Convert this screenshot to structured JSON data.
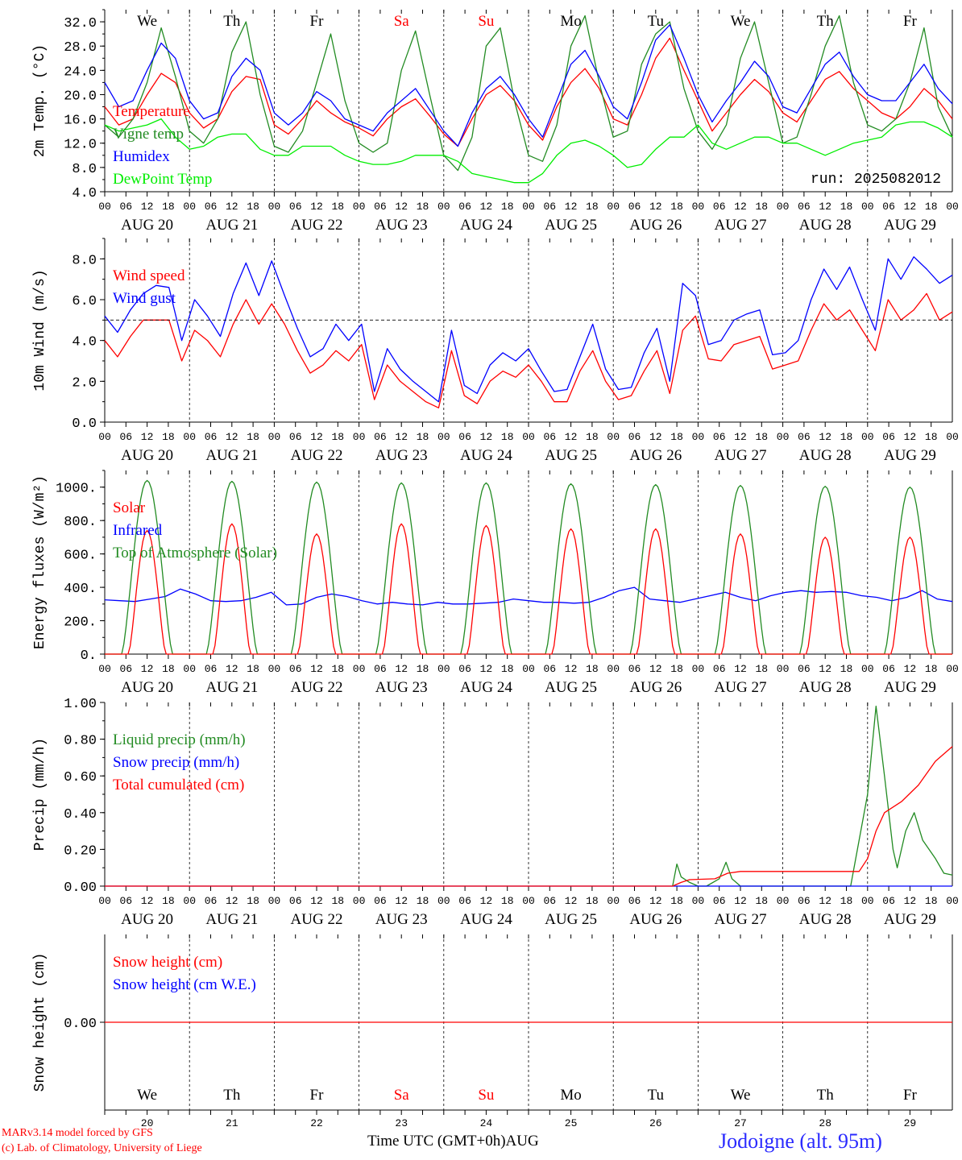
{
  "chart_data": [
    {
      "type": "line",
      "ylabel": "2m Temp. (°C)",
      "ylim": [
        4,
        34
      ],
      "yticks": [
        "4.0",
        "8.0",
        "12.0",
        "16.0",
        "20.0",
        "24.0",
        "28.0",
        "32.0"
      ],
      "annotation": "run: 2025082012",
      "series": [
        {
          "name": "Temperature",
          "color": "#ff0000",
          "values": [
            18,
            15,
            16,
            20,
            23.5,
            22,
            17,
            14.5,
            16,
            20.5,
            23,
            22.5,
            15,
            13.5,
            16,
            19,
            17,
            15.5,
            14.5,
            13.2,
            16,
            18,
            19.3,
            16.5,
            13.5,
            11.5,
            16,
            20,
            21.5,
            19,
            15,
            12.5,
            18,
            22,
            24.3,
            21,
            16,
            15,
            20,
            26,
            29.3,
            24,
            19,
            14,
            17,
            20,
            22.5,
            20.5,
            17,
            15.5,
            19,
            22.5,
            23.8,
            21,
            19,
            17,
            16,
            18,
            21,
            19,
            16
          ]
        },
        {
          "name": "Vigne temp",
          "color": "#228b22",
          "values": [
            15,
            13,
            16,
            22,
            31,
            23,
            14,
            12,
            16,
            27,
            32,
            20,
            11.5,
            10.5,
            14,
            22,
            30,
            19,
            12,
            10.5,
            12,
            24,
            30.5,
            20,
            10,
            7.5,
            13,
            28,
            31,
            19,
            10,
            9,
            15,
            28,
            33,
            22,
            13,
            14,
            25,
            30,
            32,
            21,
            14,
            11,
            15,
            26,
            32,
            22,
            12,
            13,
            20,
            28,
            33,
            22,
            15,
            14,
            16,
            22,
            31,
            18,
            13
          ]
        },
        {
          "name": "Humidex",
          "color": "#0000ff",
          "values": [
            22,
            18,
            19,
            24,
            28.5,
            26,
            19,
            16,
            17,
            23,
            26,
            24,
            17,
            15,
            17,
            20.5,
            19,
            16,
            15,
            14,
            17,
            19,
            21,
            17.5,
            14,
            11.5,
            17,
            21,
            23,
            20,
            16,
            13,
            19,
            25,
            27.3,
            23,
            18,
            16,
            22,
            29,
            31.5,
            26,
            20,
            15.5,
            19,
            22,
            25.5,
            23,
            18,
            17,
            21,
            25,
            27,
            23,
            20,
            19,
            19,
            22,
            25,
            21,
            18.5
          ]
        },
        {
          "name": "DewPoint Temp",
          "color": "#00ee00",
          "values": [
            15,
            14,
            14.5,
            15,
            16,
            13,
            11,
            11.5,
            13,
            13.5,
            13.5,
            11,
            10,
            10,
            11.5,
            11.5,
            11.5,
            10,
            9,
            8.5,
            8.5,
            9,
            10,
            10,
            10,
            9,
            7,
            6.5,
            6,
            5.5,
            5.5,
            7,
            10,
            12,
            12.5,
            11.5,
            10,
            8,
            8.5,
            11,
            13,
            13,
            15,
            12,
            11,
            12,
            13,
            13,
            12,
            12,
            11,
            10,
            11,
            12,
            12.5,
            13,
            15,
            15.5,
            15.5,
            14.5,
            13
          ]
        }
      ]
    },
    {
      "type": "line",
      "ylabel": "10m Wind (m/s)",
      "ylim": [
        0,
        9
      ],
      "yticks": [
        "0.0",
        "2.0",
        "4.0",
        "6.0",
        "8.0"
      ],
      "reference_line": 5.0,
      "series": [
        {
          "name": "Wind speed",
          "color": "#ff0000",
          "values": [
            4,
            3.2,
            4.2,
            5,
            5,
            5,
            3,
            4.5,
            4,
            3.2,
            4.8,
            6,
            4.8,
            5.8,
            4.8,
            3.5,
            2.4,
            2.8,
            3.5,
            3,
            3.8,
            1.1,
            2.8,
            2,
            1.5,
            1,
            0.7,
            3.5,
            1.3,
            0.9,
            2,
            2.5,
            2.2,
            2.8,
            2,
            1,
            1,
            2.5,
            3.5,
            2,
            1.1,
            1.3,
            2.5,
            3.5,
            1.4,
            4.5,
            5.2,
            3.1,
            3,
            3.8,
            4,
            4.2,
            2.6,
            2.8,
            3,
            4.5,
            5.8,
            5,
            5.5,
            4.5,
            3.5,
            6,
            5,
            5.5,
            6.3,
            5,
            5.4
          ]
        },
        {
          "name": "Wind gust",
          "color": "#0000ff",
          "values": [
            5.2,
            4.4,
            5.5,
            6.3,
            6.7,
            6.6,
            4,
            6,
            5.2,
            4.2,
            6.3,
            7.8,
            6.2,
            7.9,
            6.2,
            4.6,
            3.2,
            3.6,
            4.8,
            4,
            4.8,
            1.5,
            3.6,
            2.6,
            2,
            1.5,
            1,
            4.5,
            1.8,
            1.4,
            2.8,
            3.4,
            3,
            3.6,
            2.5,
            1.5,
            1.6,
            3.2,
            4.8,
            2.6,
            1.6,
            1.7,
            3.4,
            4.6,
            2,
            6.8,
            6.2,
            3.8,
            4,
            5,
            5.3,
            5.5,
            3.3,
            3.4,
            4,
            6,
            7.5,
            6.5,
            7.6,
            6,
            4.5,
            8,
            7,
            8.1,
            7.5,
            6.8,
            7.2
          ]
        }
      ]
    },
    {
      "type": "line",
      "ylabel": "Energy fluxes (W/m²)",
      "ylim": [
        0,
        1100
      ],
      "yticks": [
        "0.",
        "200.",
        "400.",
        "600.",
        "800.",
        "1000."
      ],
      "series": [
        {
          "name": "Solar",
          "color": "#ff0000",
          "peaks": [
            740,
            780,
            720,
            780,
            770,
            750,
            750,
            720,
            700,
            700
          ]
        },
        {
          "name": "Infrared",
          "color": "#0000ff",
          "values": [
            325,
            320,
            315,
            330,
            345,
            390,
            360,
            320,
            315,
            320,
            340,
            370,
            295,
            300,
            340,
            360,
            345,
            320,
            300,
            310,
            300,
            295,
            310,
            300,
            300,
            305,
            310,
            330,
            320,
            310,
            310,
            305,
            310,
            340,
            380,
            400,
            330,
            320,
            310,
            330,
            350,
            370,
            340,
            320,
            350,
            370,
            380,
            370,
            375,
            370,
            350,
            340,
            320,
            340,
            380,
            330,
            315
          ]
        },
        {
          "name": "Top of Atmosphere (Solar)",
          "color": "#228b22",
          "peaks": [
            1040,
            1035,
            1030,
            1025,
            1025,
            1020,
            1015,
            1010,
            1005,
            1000
          ]
        }
      ]
    },
    {
      "type": "line",
      "ylabel": "Precip (mm/h)",
      "ylim": [
        0,
        1
      ],
      "yticks": [
        "0.00",
        "0.20",
        "0.40",
        "0.60",
        "0.80",
        "1.00"
      ],
      "series": [
        {
          "name": "Liquid precip (mm/h)",
          "color": "#228b22",
          "points": [
            [
              26.7,
              0
            ],
            [
              26.75,
              0.12
            ],
            [
              26.8,
              0.05
            ],
            [
              26.9,
              0.02
            ],
            [
              27.0,
              0
            ],
            [
              27.1,
              0
            ],
            [
              27.25,
              0.04
            ],
            [
              27.33,
              0.13
            ],
            [
              27.4,
              0.04
            ],
            [
              27.5,
              0
            ],
            [
              28.8,
              0
            ],
            [
              29.0,
              0.5
            ],
            [
              29.1,
              0.98
            ],
            [
              29.2,
              0.6
            ],
            [
              29.3,
              0.2
            ],
            [
              29.35,
              0.1
            ],
            [
              29.45,
              0.3
            ],
            [
              29.55,
              0.4
            ],
            [
              29.65,
              0.25
            ],
            [
              29.8,
              0.15
            ],
            [
              29.9,
              0.07
            ],
            [
              30.0,
              0.06
            ]
          ]
        },
        {
          "name": "Snow precip (mm/h)",
          "color": "#0000ff",
          "points": [
            [
              20,
              0
            ],
            [
              30,
              0
            ]
          ]
        },
        {
          "name": "Total cumulated (cm)",
          "color": "#ff0000",
          "points": [
            [
              20,
              0
            ],
            [
              26.7,
              0
            ],
            [
              26.8,
              0.02
            ],
            [
              26.9,
              0.035
            ],
            [
              27.2,
              0.04
            ],
            [
              27.35,
              0.07
            ],
            [
              27.5,
              0.08
            ],
            [
              28.9,
              0.08
            ],
            [
              29.0,
              0.15
            ],
            [
              29.1,
              0.3
            ],
            [
              29.2,
              0.4
            ],
            [
              29.4,
              0.46
            ],
            [
              29.6,
              0.55
            ],
            [
              29.8,
              0.68
            ],
            [
              30.0,
              0.76
            ]
          ]
        }
      ]
    },
    {
      "type": "line",
      "ylabel": "Snow height (cm)",
      "yticks": [
        "0.00"
      ],
      "series": [
        {
          "name": "Snow height (cm)",
          "color": "#ff0000",
          "values": [
            0,
            0
          ]
        },
        {
          "name": "Snow height (cm W.E.)",
          "color": "#0000ff",
          "values": [
            0,
            0
          ]
        }
      ]
    }
  ],
  "x_axis": {
    "hour_ticks": [
      "00",
      "06",
      "12",
      "18"
    ],
    "date_labels": [
      "AUG 20",
      "AUG 21",
      "AUG 22",
      "AUG 23",
      "AUG 24",
      "AUG 25",
      "AUG 26",
      "AUG 27",
      "AUG 28",
      "AUG 29"
    ],
    "days": [
      {
        "abbr": "We",
        "num": "20",
        "color": "#000000"
      },
      {
        "abbr": "Th",
        "num": "21",
        "color": "#000000"
      },
      {
        "abbr": "Fr",
        "num": "22",
        "color": "#000000"
      },
      {
        "abbr": "Sa",
        "num": "23",
        "color": "#ff0000"
      },
      {
        "abbr": "Su",
        "num": "24",
        "color": "#ff0000"
      },
      {
        "abbr": "Mo",
        "num": "25",
        "color": "#000000"
      },
      {
        "abbr": "Tu",
        "num": "26",
        "color": "#000000"
      },
      {
        "abbr": "We",
        "num": "27",
        "color": "#000000"
      },
      {
        "abbr": "Th",
        "num": "28",
        "color": "#000000"
      },
      {
        "abbr": "Fr",
        "num": "29",
        "color": "#000000"
      }
    ],
    "xlabel": "Time UTC (GMT+0h)",
    "month": "AUG"
  },
  "footer": {
    "credit_line1": "MARv3.14 model forced by GFS",
    "credit_line2": "(c) Lab. of Climatology, University of Liege",
    "location": "Jodoigne (alt. 95m)"
  }
}
